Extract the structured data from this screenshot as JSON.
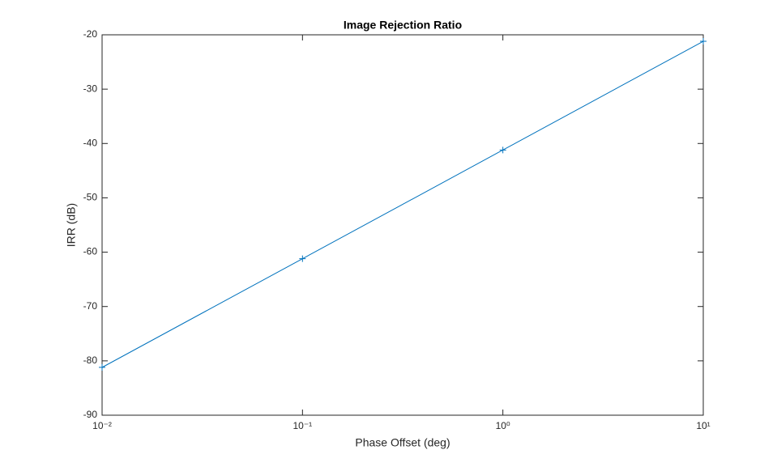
{
  "chart_data": {
    "type": "line",
    "title": "Image Rejection Ratio",
    "xlabel": "Phase Offset (deg)",
    "ylabel": "IRR (dB)",
    "x": [
      0.01,
      0.1,
      1,
      10
    ],
    "series": [
      {
        "color": "#0072bd",
        "marker": "+",
        "values": [
          -81.2,
          -61.2,
          -41.2,
          -21.2
        ]
      }
    ],
    "xscale": "log",
    "xlim": [
      0.01,
      10
    ],
    "xticks": [
      {
        "value": 0.01,
        "label": "10⁻²"
      },
      {
        "value": 0.1,
        "label": "10⁻¹"
      },
      {
        "value": 1,
        "label": "10⁰"
      },
      {
        "value": 10,
        "label": "10¹"
      }
    ],
    "ylim": [
      -90,
      -20
    ],
    "yticks": [
      -90,
      -80,
      -70,
      -60,
      -50,
      -40,
      -30,
      -20
    ],
    "grid": false
  }
}
